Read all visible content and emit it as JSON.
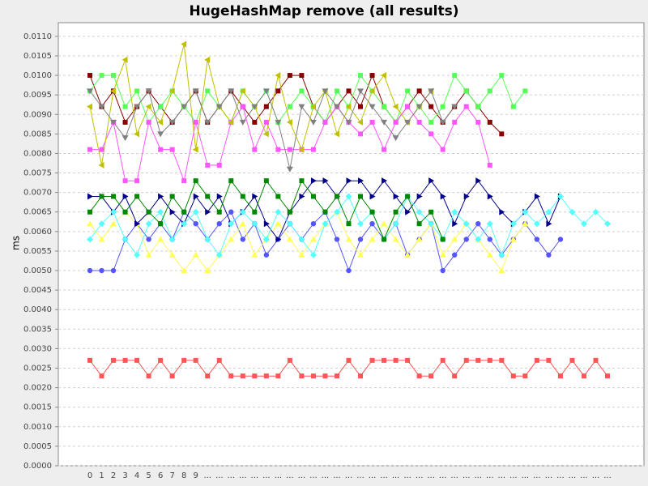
{
  "chart_data": {
    "type": "line",
    "title": "HugeHashMap remove (all results)",
    "y_label": "ms",
    "categories": [
      "0",
      "1",
      "2",
      "3",
      "4",
      "5",
      "6",
      "7",
      "8",
      "9",
      "...",
      "...",
      "...",
      "...",
      "...",
      "...",
      "...",
      "...",
      "...",
      "...",
      "...",
      "...",
      "...",
      "...",
      "...",
      "...",
      "...",
      "...",
      "...",
      "...",
      "...",
      "...",
      "...",
      "...",
      "...",
      "...",
      "...",
      "...",
      "...",
      "...",
      "...",
      "...",
      "...",
      "...",
      "..."
    ],
    "ylim": [
      0,
      0.01135
    ],
    "yticks": [
      {
        "value": 0,
        "label": "0.0000"
      },
      {
        "value": 0.0005,
        "label": "0.0005"
      },
      {
        "value": 0.001,
        "label": "0.0010"
      },
      {
        "value": 0.0015,
        "label": "0.0015"
      },
      {
        "value": 0.002,
        "label": "0.0020"
      },
      {
        "value": 0.0025,
        "label": "0.0025"
      },
      {
        "value": 0.003,
        "label": "0.0030"
      },
      {
        "value": 0.0035,
        "label": "0.0035"
      },
      {
        "value": 0.004,
        "label": "0.0040"
      },
      {
        "value": 0.0045,
        "label": "0.0045"
      },
      {
        "value": 0.005,
        "label": "0.0050"
      },
      {
        "value": 0.0055,
        "label": "0.0055"
      },
      {
        "value": 0.006,
        "label": "0.0060"
      },
      {
        "value": 0.0065,
        "label": "0.0065"
      },
      {
        "value": 0.007,
        "label": "0.0070"
      },
      {
        "value": 0.0075,
        "label": "0.0075"
      },
      {
        "value": 0.008,
        "label": "0.0080"
      },
      {
        "value": 0.0085,
        "label": "0.0085"
      },
      {
        "value": 0.009,
        "label": "0.0090"
      },
      {
        "value": 0.0095,
        "label": "0.0095"
      },
      {
        "value": 0.01,
        "label": "0.0100"
      },
      {
        "value": 0.0105,
        "label": "0.0105"
      },
      {
        "value": 0.011,
        "label": "0.0110"
      }
    ],
    "grid": true,
    "series": [
      {
        "color": "#ff5555",
        "shape": "square",
        "values": [
          0.0027,
          0.0023,
          0.0027,
          0.0027,
          0.0027,
          0.0023,
          0.0027,
          0.0023,
          0.0027,
          0.0027,
          0.0023,
          0.0027,
          0.0023,
          0.0023,
          0.0023,
          0.0023,
          0.0023,
          0.0027,
          0.0023,
          0.0023,
          0.0023,
          0.0023,
          0.0027,
          0.0023,
          0.0027,
          0.0027,
          0.0027,
          0.0027,
          0.0023,
          0.0023,
          0.0027,
          0.0023,
          0.0027,
          0.0027,
          0.0027,
          0.0027,
          0.0023,
          0.0023,
          0.0027,
          0.0027,
          0.0023,
          0.0027,
          0.0023,
          0.0027,
          0.0023
        ]
      },
      {
        "color": "#5555ff",
        "shape": "circle",
        "values": [
          0.005,
          0.005,
          0.005,
          0.0058,
          0.0062,
          0.0058,
          0.0062,
          0.0058,
          0.0065,
          0.0062,
          0.0058,
          0.0062,
          0.0065,
          0.0058,
          0.0062,
          0.0054,
          0.0058,
          0.0062,
          0.0058,
          0.0062,
          0.0065,
          0.0058,
          0.005,
          0.0058,
          0.0062,
          0.0058,
          0.0062,
          0.0054,
          0.0058,
          0.0062,
          0.005,
          0.0054,
          0.0058,
          0.0062,
          0.0058,
          0.0054,
          0.0058,
          0.0062,
          0.0058,
          0.0054,
          0.0058,
          null,
          null,
          null,
          null
        ]
      },
      {
        "color": "#880000",
        "shape": "square",
        "values": [
          0.01,
          0.0092,
          0.0096,
          0.0088,
          0.0092,
          0.0096,
          0.0092,
          0.0088,
          0.0092,
          0.0096,
          0.0088,
          0.0092,
          0.0096,
          0.0092,
          0.0088,
          0.0092,
          0.0096,
          0.01,
          0.01,
          0.0092,
          0.0088,
          0.0092,
          0.0096,
          0.0092,
          0.01,
          0.0092,
          0.0088,
          0.0092,
          0.0096,
          0.0092,
          0.0088,
          0.0092,
          0.0096,
          0.0092,
          0.0088,
          0.0085,
          null,
          null,
          null,
          null,
          null,
          null,
          null,
          null,
          null
        ]
      },
      {
        "color": "#55ff55",
        "shape": "square",
        "values": [
          0.0096,
          0.01,
          0.01,
          0.0092,
          0.0096,
          0.0088,
          0.0092,
          0.0096,
          0.0092,
          0.0088,
          0.0096,
          0.0092,
          0.0088,
          0.0096,
          0.0092,
          0.0096,
          0.0088,
          0.0092,
          0.0096,
          0.0092,
          0.0088,
          0.0096,
          0.0092,
          0.01,
          0.0096,
          0.0092,
          0.0088,
          0.0096,
          0.0092,
          0.0088,
          0.0092,
          0.01,
          0.0096,
          0.0092,
          0.0096,
          0.01,
          0.0092,
          0.0096,
          null,
          null,
          null,
          null,
          null,
          null,
          null
        ]
      },
      {
        "color": "#ffff55",
        "shape": "tri-up",
        "values": [
          0.0062,
          0.0058,
          0.0062,
          0.0065,
          0.0062,
          0.0054,
          0.0058,
          0.0054,
          0.005,
          0.0054,
          0.005,
          0.0054,
          0.0058,
          0.0062,
          0.0054,
          0.0058,
          0.0062,
          0.0058,
          0.0054,
          0.0058,
          0.0062,
          0.0065,
          0.0058,
          0.0054,
          0.0058,
          0.0062,
          0.0058,
          0.0054,
          0.0058,
          0.0062,
          0.0054,
          0.0058,
          0.0062,
          0.0058,
          0.0054,
          0.005,
          0.0058,
          0.0062,
          null,
          null,
          null,
          null,
          null,
          null,
          null
        ]
      },
      {
        "color": "#000088",
        "shape": "tri-right",
        "values": [
          0.0069,
          0.0069,
          0.0065,
          0.0069,
          0.0062,
          0.0065,
          0.0069,
          0.0065,
          0.0062,
          0.0069,
          0.0065,
          0.0069,
          0.0062,
          0.0065,
          0.0069,
          0.0062,
          0.0058,
          0.0065,
          0.0069,
          0.0073,
          0.0073,
          0.0069,
          0.0073,
          0.0073,
          0.0069,
          0.0073,
          0.0069,
          0.0065,
          0.0069,
          0.0073,
          0.0069,
          0.0062,
          0.0069,
          0.0073,
          0.0069,
          0.0065,
          0.0062,
          0.0065,
          0.0069,
          0.0062,
          0.0069,
          null,
          null,
          null,
          null
        ]
      },
      {
        "color": "#ff55ff",
        "shape": "square",
        "values": [
          0.0081,
          0.0081,
          0.0088,
          0.0073,
          0.0073,
          0.0088,
          0.0081,
          0.0081,
          0.0073,
          0.0088,
          0.0077,
          0.0077,
          0.0088,
          0.0092,
          0.0081,
          0.0088,
          0.0081,
          0.0081,
          0.0081,
          0.0081,
          0.0088,
          0.0092,
          0.0088,
          0.0085,
          0.0088,
          0.0081,
          0.0088,
          0.0092,
          0.0088,
          0.0085,
          0.0081,
          0.0088,
          0.0092,
          0.0088,
          0.0077,
          null,
          null,
          null,
          null,
          null,
          null,
          null,
          null,
          null,
          null
        ]
      },
      {
        "color": "#55ffff",
        "shape": "diamond",
        "values": [
          0.0058,
          0.0062,
          0.0065,
          0.0058,
          0.0054,
          0.0062,
          0.0065,
          0.0058,
          0.0062,
          0.0065,
          0.0058,
          0.0054,
          0.0062,
          0.0065,
          0.0062,
          0.0058,
          0.0065,
          0.0062,
          0.0058,
          0.0054,
          0.0062,
          0.0065,
          0.0069,
          0.0062,
          0.0065,
          0.0058,
          0.0062,
          0.0069,
          0.0065,
          0.0062,
          0.0058,
          0.0065,
          0.0062,
          0.0058,
          0.0062,
          0.0054,
          0.0062,
          0.0065,
          0.0062,
          0.0065,
          0.0069,
          0.0065,
          0.0062,
          0.0065,
          0.0062
        ]
      },
      {
        "color": "#008800",
        "shape": "square",
        "values": [
          0.0065,
          0.0069,
          0.0069,
          0.0065,
          0.0069,
          0.0065,
          0.0062,
          0.0069,
          0.0065,
          0.0073,
          0.0069,
          0.0065,
          0.0073,
          0.0069,
          0.0065,
          0.0073,
          0.0069,
          0.0065,
          0.0073,
          0.0069,
          0.0065,
          0.0069,
          0.0062,
          0.0069,
          0.0065,
          0.0058,
          0.0065,
          0.0069,
          0.0062,
          0.0065,
          0.0058,
          null,
          null,
          null,
          null,
          null,
          null,
          null,
          null,
          null,
          null,
          null,
          null,
          null,
          null
        ]
      },
      {
        "color": "#c0c000",
        "shape": "tri-left",
        "values": [
          0.0092,
          0.0077,
          0.0096,
          0.0104,
          0.0085,
          0.0092,
          0.0088,
          0.0096,
          0.0108,
          0.0081,
          0.0104,
          0.0092,
          0.0088,
          0.0096,
          0.0092,
          0.0085,
          0.01,
          0.0088,
          0.0081,
          0.0092,
          0.0096,
          0.0085,
          0.0092,
          0.0088,
          0.0096,
          0.01,
          0.0092,
          0.0088,
          0.0092,
          0.0096,
          null,
          null,
          null,
          null,
          null,
          null,
          null,
          null,
          null,
          null,
          null,
          null,
          null,
          null,
          null
        ]
      },
      {
        "color": "#808080",
        "shape": "tri-down",
        "values": [
          0.0096,
          0.0092,
          0.0088,
          0.0084,
          0.0092,
          0.0096,
          0.0085,
          0.0088,
          0.0092,
          0.0096,
          0.0088,
          0.0092,
          0.0096,
          0.0088,
          0.0092,
          0.0096,
          0.0088,
          0.0076,
          0.0092,
          0.0088,
          0.0096,
          0.0092,
          0.0088,
          0.0096,
          0.0092,
          0.0088,
          0.0084,
          0.0088,
          0.0092,
          0.0096,
          0.0088,
          0.0092,
          null,
          null,
          null,
          null,
          null,
          null,
          null,
          null,
          null,
          null,
          null,
          null,
          null
        ]
      }
    ]
  }
}
